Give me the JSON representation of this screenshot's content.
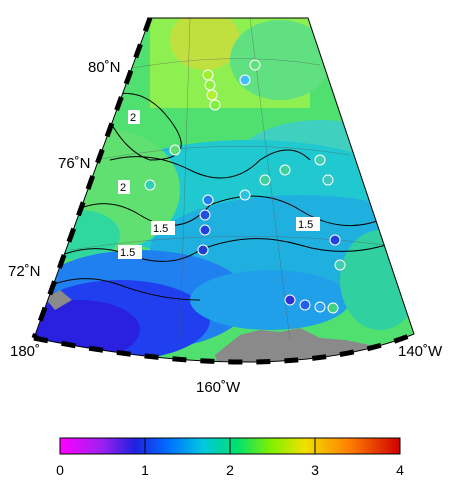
{
  "map": {
    "lat_labels": [
      "80˚N",
      "76˚N",
      "72˚N"
    ],
    "lon_labels": [
      "180˚",
      "160˚W",
      "140˚W"
    ],
    "contour_labels": [
      "2",
      "2",
      "1.5",
      "1.5",
      "1.5"
    ]
  },
  "colorbar": {
    "ticks": [
      "0",
      "1",
      "2",
      "3",
      "4"
    ],
    "range": [
      0,
      4
    ],
    "gradient": [
      "#ff00ff",
      "#a020f0",
      "#2020e0",
      "#00a0ff",
      "#00e0c0",
      "#00e060",
      "#a0f000",
      "#f0e000",
      "#ff8000",
      "#e00000"
    ]
  },
  "colors": {
    "land": "#8a8a8a",
    "frame_dark": "#000000",
    "frame_light": "#ffffff"
  }
}
